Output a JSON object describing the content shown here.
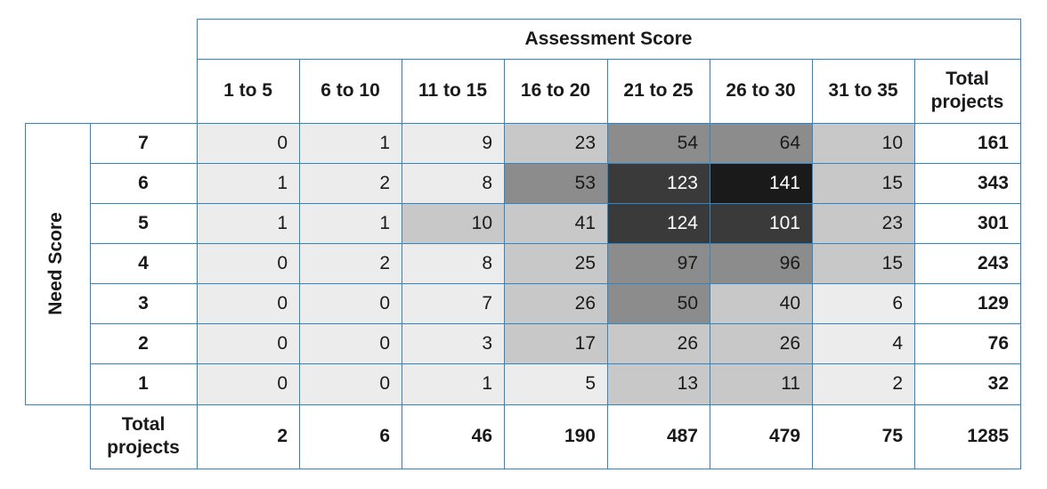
{
  "chart_data": {
    "type": "heatmap",
    "title": "Assessment Score",
    "ylabel": "Need Score",
    "columns": [
      "1 to 5",
      "6 to 10",
      "11 to 15",
      "16 to 20",
      "21 to 25",
      "26 to 30",
      "31 to 35"
    ],
    "total_label": "Total projects",
    "rows": [
      {
        "label": "7",
        "values": [
          0,
          1,
          9,
          23,
          54,
          64,
          10
        ],
        "total": 161
      },
      {
        "label": "6",
        "values": [
          1,
          2,
          8,
          53,
          123,
          141,
          15
        ],
        "total": 343
      },
      {
        "label": "5",
        "values": [
          1,
          1,
          10,
          41,
          124,
          101,
          23
        ],
        "total": 301
      },
      {
        "label": "4",
        "values": [
          0,
          2,
          8,
          25,
          97,
          96,
          15
        ],
        "total": 243
      },
      {
        "label": "3",
        "values": [
          0,
          0,
          7,
          26,
          50,
          40,
          6
        ],
        "total": 129
      },
      {
        "label": "2",
        "values": [
          0,
          0,
          3,
          17,
          26,
          26,
          4
        ],
        "total": 76
      },
      {
        "label": "1",
        "values": [
          0,
          0,
          1,
          5,
          13,
          11,
          2
        ],
        "total": 32
      }
    ],
    "column_totals": [
      2,
      6,
      46,
      190,
      487,
      479,
      75
    ],
    "grand_total": 1285,
    "colors": {
      "border": "#2e86c8",
      "shade_0_9": "#ececec",
      "shade_10_49": "#c8c8c8",
      "shade_50_99": "#8c8c8c",
      "shade_100_139": "#3a3a3a",
      "shade_140_plus": "#1a1a1a"
    }
  }
}
